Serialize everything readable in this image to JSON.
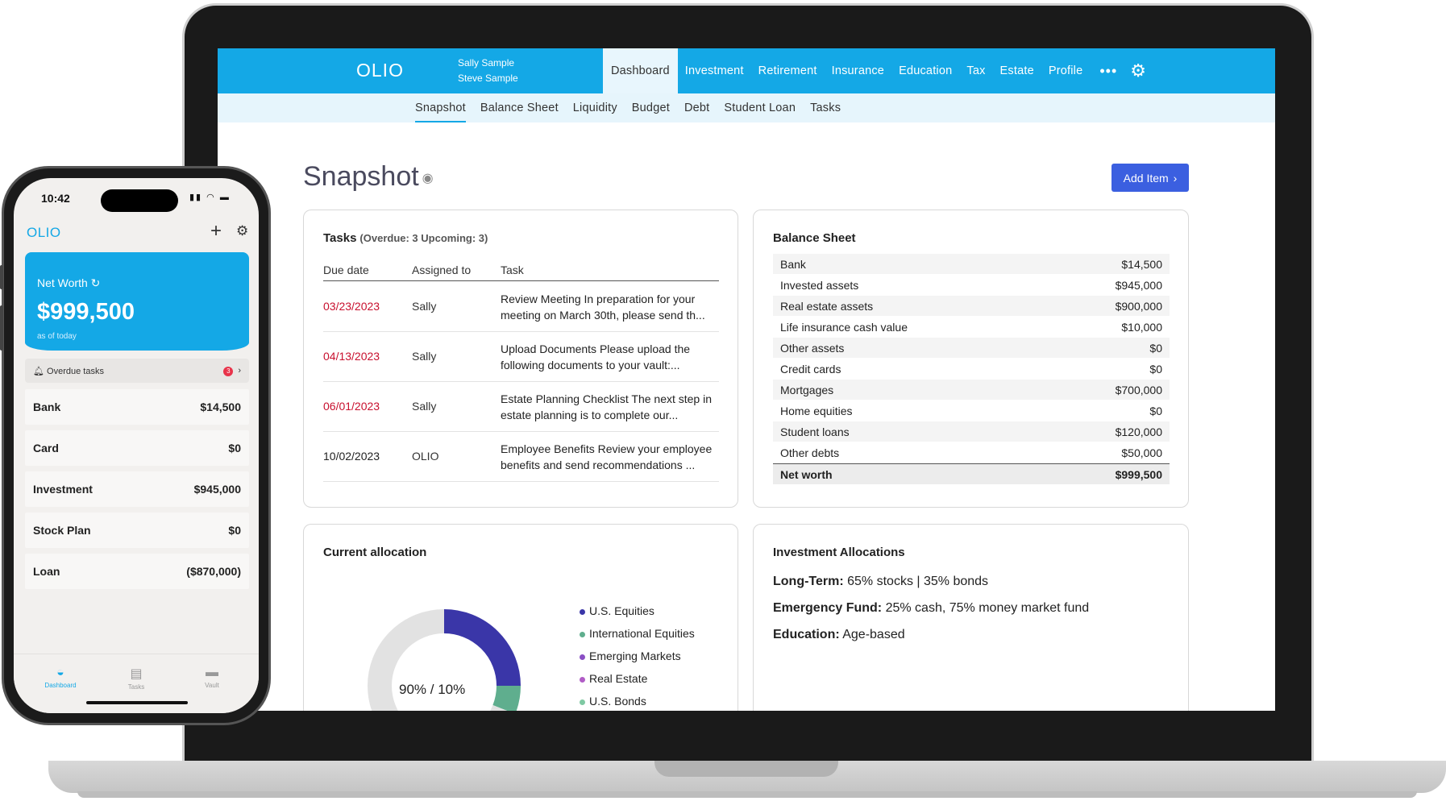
{
  "app": {
    "logo": "OLIO",
    "users": [
      "Sally Sample",
      "Steve Sample"
    ]
  },
  "nav": {
    "items": [
      {
        "label": "Dashboard",
        "active": true
      },
      {
        "label": "Investment"
      },
      {
        "label": "Retirement"
      },
      {
        "label": "Insurance"
      },
      {
        "label": "Education"
      },
      {
        "label": "Tax"
      },
      {
        "label": "Estate"
      },
      {
        "label": "Profile"
      }
    ],
    "more": "•••"
  },
  "subnav": {
    "items": [
      {
        "label": "Snapshot",
        "active": true
      },
      {
        "label": "Balance Sheet"
      },
      {
        "label": "Liquidity"
      },
      {
        "label": "Budget"
      },
      {
        "label": "Debt"
      },
      {
        "label": "Student Loan"
      },
      {
        "label": "Tasks"
      }
    ]
  },
  "page": {
    "title": "Snapshot",
    "add_button": "Add Item"
  },
  "tasks": {
    "title": "Tasks",
    "counts": "(Overdue: 3  Upcoming: 3)",
    "columns": [
      "Due date",
      "Assigned to",
      "Task"
    ],
    "rows": [
      {
        "date": "03/23/2023",
        "assigned": "Sally",
        "task": "Review Meeting In preparation for your meeting on March 30th, please send th...",
        "overdue": true
      },
      {
        "date": "04/13/2023",
        "assigned": "Sally",
        "task": "Upload Documents Please upload the following documents to your vault:...",
        "overdue": true
      },
      {
        "date": "06/01/2023",
        "assigned": "Sally",
        "task": "Estate Planning Checklist The next step in estate planning is to complete our...",
        "overdue": true
      },
      {
        "date": "10/02/2023",
        "assigned": "OLIO",
        "task": "Employee Benefits Review your employee benefits and send recommendations  ...",
        "overdue": false
      }
    ]
  },
  "balance_sheet": {
    "title": "Balance Sheet",
    "rows": [
      {
        "label": "Bank",
        "value": "$14,500"
      },
      {
        "label": "Invested assets",
        "value": "$945,000"
      },
      {
        "label": "Real estate assets",
        "value": "$900,000"
      },
      {
        "label": "Life insurance cash value",
        "value": "$10,000"
      },
      {
        "label": "Other assets",
        "value": "$0"
      },
      {
        "label": "Credit cards",
        "value": "$0"
      },
      {
        "label": "Mortgages",
        "value": "$700,000"
      },
      {
        "label": "Home equities",
        "value": "$0"
      },
      {
        "label": "Student loans",
        "value": "$120,000"
      },
      {
        "label": "Other debts",
        "value": "$50,000"
      }
    ],
    "total": {
      "label": "Net worth",
      "value": "$999,500"
    }
  },
  "allocation": {
    "title": "Current allocation",
    "center_label": "90% / 10%",
    "legend": [
      {
        "label": "U.S. Equities",
        "color": "#3a36a8"
      },
      {
        "label": "International Equities",
        "color": "#5fae8e"
      },
      {
        "label": "Emerging Markets",
        "color": "#8a4fc4"
      },
      {
        "label": "Real Estate",
        "color": "#b05cc6"
      },
      {
        "label": "U.S. Bonds",
        "color": "#7fc9a3"
      }
    ],
    "segments": [
      {
        "fraction": 0.25,
        "color": "#3a36a8"
      },
      {
        "fraction": 0.06,
        "color": "#5fae8e"
      },
      {
        "fraction": 0.69,
        "color": "#e2e2e2"
      }
    ]
  },
  "investment_allocations": {
    "title": "Investment Allocations",
    "lines": [
      {
        "label": "Long-Term:",
        "text": " 65% stocks | 35% bonds"
      },
      {
        "label": "Emergency Fund:",
        "text": " 25% cash, 75% money market fund"
      },
      {
        "label": "Education:",
        "text": " Age-based"
      }
    ]
  },
  "phone": {
    "time": "10:42",
    "logo": "OLIO",
    "net_worth_label": "Net Worth",
    "net_worth_value": "$999,500",
    "as_of": "as of today",
    "overdue_label": "Overdue tasks",
    "overdue_count": "3",
    "rows": [
      {
        "label": "Bank",
        "value": "$14,500"
      },
      {
        "label": "Card",
        "value": "$0"
      },
      {
        "label": "Investment",
        "value": "$945,000"
      },
      {
        "label": "Stock Plan",
        "value": "$0"
      },
      {
        "label": "Loan",
        "value": "($870,000)"
      }
    ],
    "tabs": [
      "Dashboard",
      "Tasks",
      "Vault"
    ]
  },
  "colors": {
    "brand": "#14a8e6",
    "button": "#3b5fe0",
    "overdue": "#c8102e"
  }
}
